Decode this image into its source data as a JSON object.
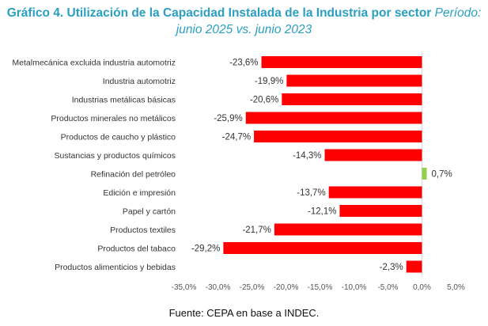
{
  "title": {
    "main": "Gráfico 4. Utilización de la Capacidad Instalada de la Industria por sector",
    "period_label": "Período:",
    "period": "junio 2025 vs. junio 2023"
  },
  "source": "Fuente: CEPA en base a INDEC.",
  "colors": {
    "negative": "#ff0000",
    "positive": "#92d050",
    "title": "#2a9fc3"
  },
  "chart_data": {
    "type": "bar",
    "orientation": "horizontal",
    "categories": [
      "Metalmecánica excluida industria automotriz",
      "Industria automotriz",
      "Industrias metálicas básicas",
      "Productos minerales no metálicos",
      "Productos de caucho y plástico",
      "Sustancias y productos químicos",
      "Refinación del petróleo",
      "Edición e impresión",
      "Papel  y cartón",
      "Productos textiles",
      "Productos del tabaco",
      "Productos alimenticios y bebidas"
    ],
    "values": [
      -23.6,
      -19.9,
      -20.6,
      -25.9,
      -24.7,
      -14.3,
      0.7,
      -13.7,
      -12.1,
      -21.7,
      -29.2,
      -2.3
    ],
    "value_labels": [
      "-23,6%",
      "-19,9%",
      "-20,6%",
      "-25,9%",
      "-24,7%",
      "-14,3%",
      "0,7%",
      "-13,7%",
      "-12,1%",
      "-21,7%",
      "-29,2%",
      "-2,3%"
    ],
    "xlim": [
      -35,
      5
    ],
    "xticks": [
      -35,
      -30,
      -25,
      -20,
      -15,
      -10,
      -5,
      0,
      5
    ],
    "xtick_labels": [
      "-35,0%",
      "-30,0%",
      "-25,0%",
      "-20,0%",
      "-15,0%",
      "-10,0%",
      "-5,0%",
      "0,0%",
      "5,0%"
    ],
    "grid": false,
    "legend": "none"
  }
}
